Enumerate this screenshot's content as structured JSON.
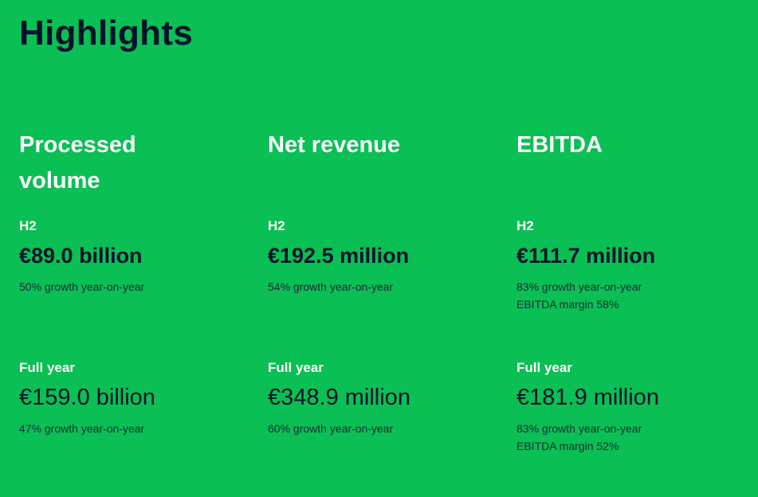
{
  "page": {
    "title": "Highlights",
    "background_color": "#0abf53",
    "text_dark_color": "#00112c",
    "text_light_color": "#ffffff"
  },
  "metrics": [
    {
      "title": "Processed volume",
      "h2": {
        "label": "H2",
        "value": "€89.0 billion",
        "notes": [
          "50% growth year-on-year"
        ]
      },
      "full_year": {
        "label": "Full year",
        "value": "€159.0 billion",
        "notes": [
          "47% growth year-on-year"
        ]
      }
    },
    {
      "title": "Net revenue",
      "h2": {
        "label": "H2",
        "value": "€192.5 million",
        "notes": [
          "54% growth year-on-year"
        ]
      },
      "full_year": {
        "label": "Full year",
        "value": "€348.9 million",
        "notes": [
          "60% growth year-on-year"
        ]
      }
    },
    {
      "title": "EBITDA",
      "h2": {
        "label": "H2",
        "value": "€111.7 million",
        "notes": [
          "83% growth year-on-year",
          "EBITDA margin 58%"
        ]
      },
      "full_year": {
        "label": "Full year",
        "value": "€181.9 million",
        "notes": [
          "83% growth year-on-year",
          "EBITDA margin 52%"
        ]
      }
    }
  ]
}
